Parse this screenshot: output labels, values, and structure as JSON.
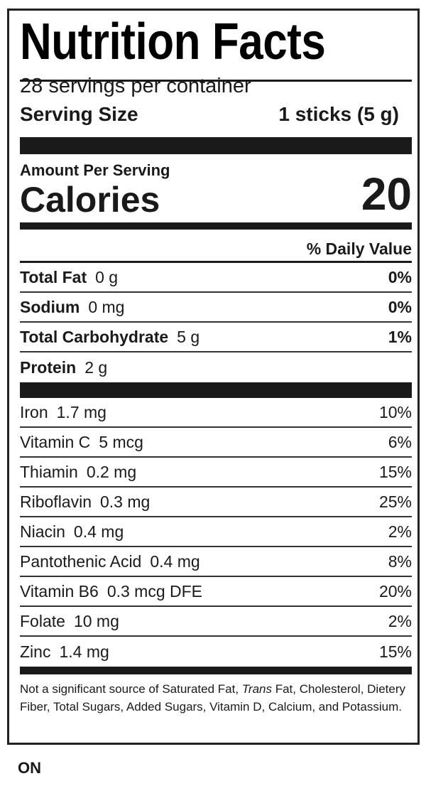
{
  "title": "Nutrition Facts",
  "servings_per_container": "28 servings per container",
  "serving_size": {
    "label": "Serving Size",
    "value": "1 sticks (5 g)"
  },
  "amount_per_serving": "Amount Per Serving",
  "calories": {
    "label": "Calories",
    "value": "20"
  },
  "daily_value_header": "% Daily Value",
  "macros": [
    {
      "name": "Total Fat",
      "amount": "0 g",
      "dv": "0%"
    },
    {
      "name": "Sodium",
      "amount": "0 mg",
      "dv": "0%"
    },
    {
      "name": "Total Carbohydrate",
      "amount": "5 g",
      "dv": "1%"
    },
    {
      "name": "Protein",
      "amount": "2 g",
      "dv": ""
    }
  ],
  "micros": [
    {
      "name": "Iron",
      "amount": "1.7 mg",
      "dv": "10%"
    },
    {
      "name": "Vitamin C",
      "amount": "5 mcg",
      "dv": "6%"
    },
    {
      "name": "Thiamin",
      "amount": "0.2 mg",
      "dv": "15%"
    },
    {
      "name": "Riboflavin",
      "amount": "0.3 mg",
      "dv": "25%"
    },
    {
      "name": "Niacin",
      "amount": "0.4 mg",
      "dv": "2%"
    },
    {
      "name": "Pantothenic Acid",
      "amount": "0.4 mg",
      "dv": "8%"
    },
    {
      "name": "Vitamin B6",
      "amount": "0.3 mcg DFE",
      "dv": "20%"
    },
    {
      "name": "Folate",
      "amount": "10 mg",
      "dv": "2%"
    },
    {
      "name": "Zinc",
      "amount": "1.4 mg",
      "dv": "15%"
    }
  ],
  "footnote": {
    "part1": "Not a significant source of Saturated Fat, ",
    "italic": "Trans",
    "part2": " Fat, Cholesterol, Dietery Fiber, Total Sugars, Added Sugars, Vitamin D, Calcium, and Potassium."
  },
  "brand": "ON"
}
